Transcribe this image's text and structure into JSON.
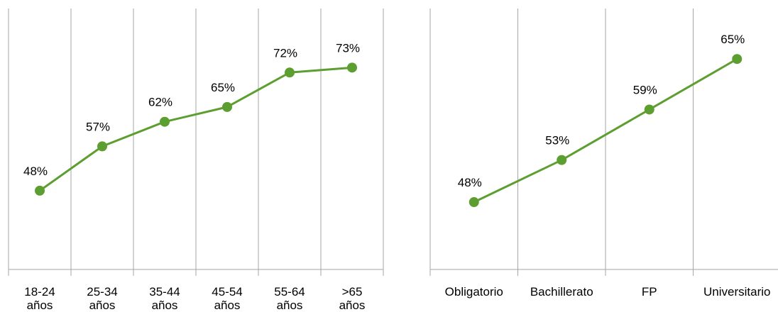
{
  "chart_data": [
    {
      "type": "line",
      "title": "",
      "xlabel": "",
      "ylabel": "",
      "categories": [
        "18-24 años",
        "25-34 años",
        "35-44 años",
        "45-54 años",
        "55-64 años",
        ">65 años"
      ],
      "category_lines": [
        [
          "18-24",
          "años"
        ],
        [
          "25-34",
          "años"
        ],
        [
          "35-44",
          "años"
        ],
        [
          "45-54",
          "años"
        ],
        [
          "55-64",
          "años"
        ],
        [
          ">65",
          "años"
        ]
      ],
      "series": [
        {
          "values": [
            48,
            57,
            62,
            65,
            72,
            73
          ]
        }
      ],
      "data_labels": [
        "48%",
        "57%",
        "62%",
        "65%",
        "72%",
        "73%"
      ],
      "ylim": [
        32,
        85
      ],
      "grid": "vertical",
      "color": "#5d9e31"
    },
    {
      "type": "line",
      "title": "",
      "xlabel": "",
      "ylabel": "",
      "categories": [
        "Obligatorio",
        "Bachillerato",
        "FP",
        "Universitario"
      ],
      "category_lines": [
        [
          "Obligatorio"
        ],
        [
          "Bachillerato"
        ],
        [
          "FP"
        ],
        [
          "Universitario"
        ]
      ],
      "series": [
        {
          "values": [
            48,
            53,
            59,
            65
          ]
        }
      ],
      "data_labels": [
        "48%",
        "53%",
        "59%",
        "65%"
      ],
      "ylim": [
        40,
        71
      ],
      "grid": "vertical",
      "color": "#5d9e31"
    }
  ]
}
